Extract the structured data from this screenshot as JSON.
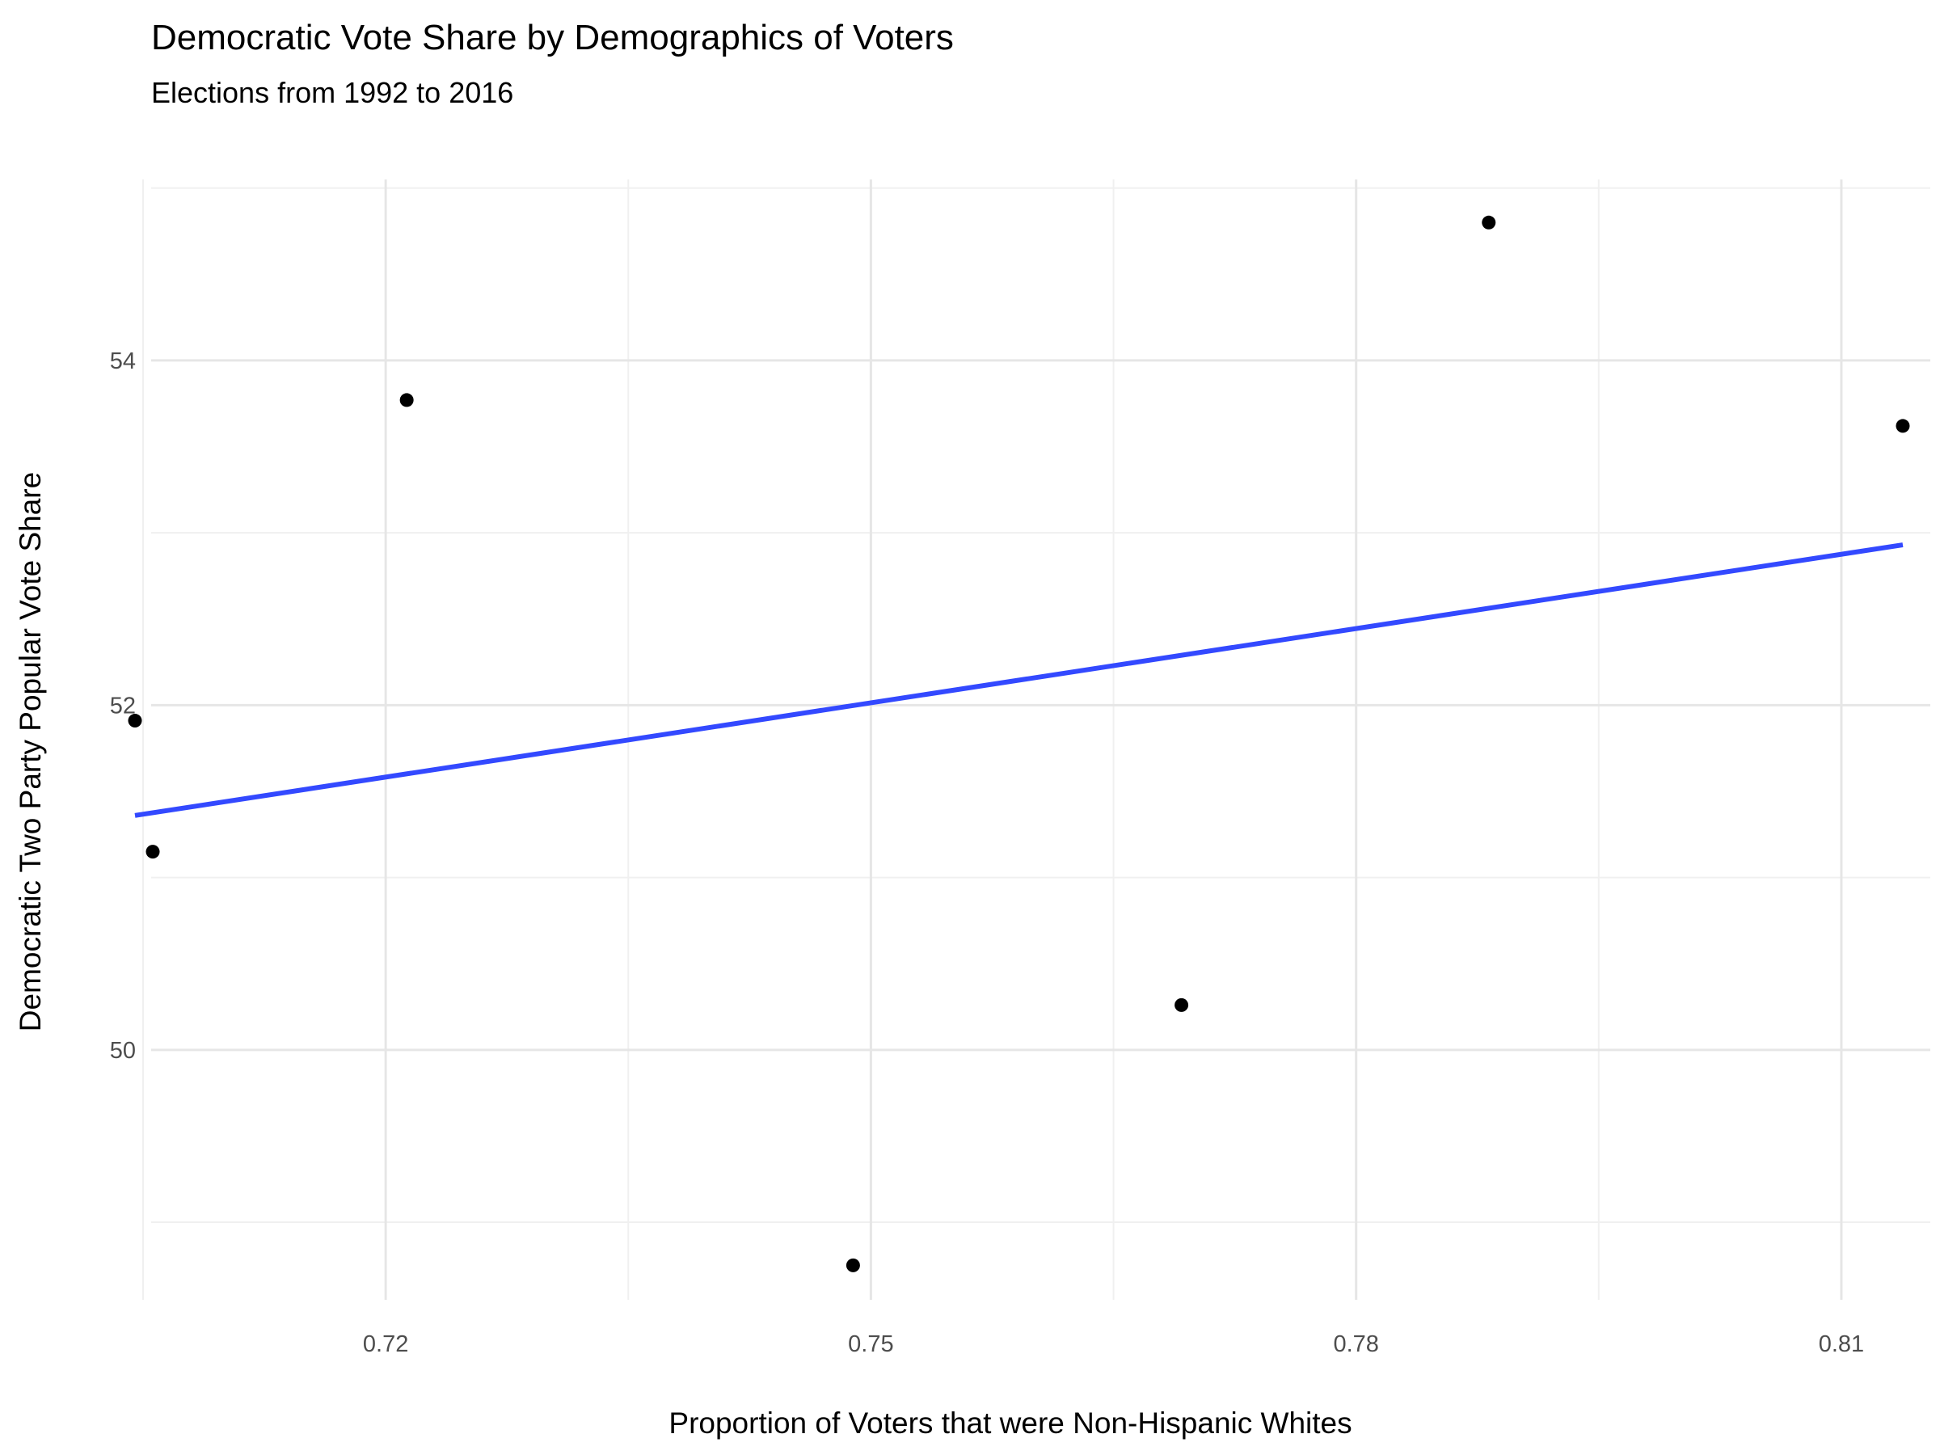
{
  "chart_data": {
    "type": "scatter",
    "title": "Democratic Vote Share by Demographics of Voters",
    "subtitle": "Elections from 1992 to 2016",
    "xlabel": "Proportion of Voters that were Non-Hispanic Whites",
    "ylabel": "Democratic Two Party Popular Vote Share",
    "xlim": [
      0.7055,
      0.8155
    ],
    "ylim": [
      48.55,
      55.05
    ],
    "x_major_ticks": [
      0.72,
      0.75,
      0.78,
      0.81
    ],
    "x_minor_ticks": [
      0.705,
      0.735,
      0.765,
      0.795
    ],
    "y_major_ticks": [
      50,
      52,
      54
    ],
    "y_minor_ticks": [
      49,
      51,
      53,
      55
    ],
    "grid": true,
    "points": [
      {
        "x": 0.7045,
        "y": 51.91
      },
      {
        "x": 0.7056,
        "y": 51.15
      },
      {
        "x": 0.7213,
        "y": 53.77
      },
      {
        "x": 0.7489,
        "y": 48.75
      },
      {
        "x": 0.7692,
        "y": 50.26
      },
      {
        "x": 0.7882,
        "y": 54.8
      },
      {
        "x": 0.8138,
        "y": 53.62
      }
    ],
    "trend_line": {
      "x": [
        0.7045,
        0.8138
      ],
      "y": [
        51.36,
        52.93
      ],
      "color": "#3349ff"
    },
    "point_color": "#000000",
    "grid_major_color": "#e6e6e6",
    "grid_minor_color": "#f0f0f0"
  }
}
